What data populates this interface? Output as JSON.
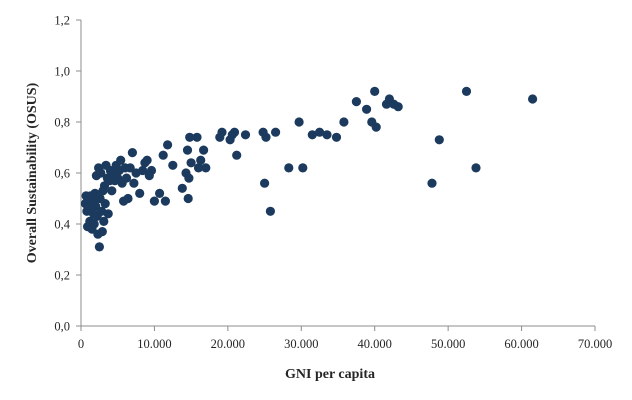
{
  "chart_data": {
    "type": "scatter",
    "title": "",
    "xlabel": "GNI per capita",
    "ylabel": "Overall Sustainability (OSUS)",
    "xlim": [
      0,
      70000
    ],
    "ylim": [
      0,
      1.2
    ],
    "x_ticks": [
      {
        "value": 0,
        "label": "0"
      },
      {
        "value": 10000,
        "label": "10.000"
      },
      {
        "value": 20000,
        "label": "20.000"
      },
      {
        "value": 30000,
        "label": "30.000"
      },
      {
        "value": 40000,
        "label": "40.000"
      },
      {
        "value": 50000,
        "label": "50.000"
      },
      {
        "value": 60000,
        "label": "60.000"
      },
      {
        "value": 70000,
        "label": "70.000"
      }
    ],
    "y_ticks": [
      {
        "value": 0,
        "label": "0,0"
      },
      {
        "value": 0.2,
        "label": "0,2"
      },
      {
        "value": 0.4,
        "label": "0,4"
      },
      {
        "value": 0.6,
        "label": "0,6"
      },
      {
        "value": 0.8,
        "label": "0,8"
      },
      {
        "value": 1.0,
        "label": "1,0"
      },
      {
        "value": 1.2,
        "label": "1,2"
      }
    ],
    "grid": false,
    "point_color": "#1b3a5e",
    "points": [
      [
        600,
        0.48
      ],
      [
        700,
        0.51
      ],
      [
        800,
        0.45
      ],
      [
        900,
        0.39
      ],
      [
        1000,
        0.5
      ],
      [
        1100,
        0.47
      ],
      [
        1200,
        0.41
      ],
      [
        1300,
        0.51
      ],
      [
        1400,
        0.46
      ],
      [
        1500,
        0.38
      ],
      [
        1600,
        0.49
      ],
      [
        1700,
        0.44
      ],
      [
        1800,
        0.4
      ],
      [
        1900,
        0.52
      ],
      [
        2000,
        0.47
      ],
      [
        2100,
        0.59
      ],
      [
        2200,
        0.43
      ],
      [
        2300,
        0.36
      ],
      [
        2400,
        0.62
      ],
      [
        2500,
        0.31
      ],
      [
        2600,
        0.5
      ],
      [
        2700,
        0.6
      ],
      [
        2800,
        0.45
      ],
      [
        2900,
        0.37
      ],
      [
        3000,
        0.53
      ],
      [
        3100,
        0.41
      ],
      [
        3200,
        0.55
      ],
      [
        3300,
        0.48
      ],
      [
        3400,
        0.63
      ],
      [
        3600,
        0.58
      ],
      [
        3700,
        0.44
      ],
      [
        3900,
        0.57
      ],
      [
        4000,
        0.61
      ],
      [
        4200,
        0.53
      ],
      [
        4400,
        0.6
      ],
      [
        4600,
        0.57
      ],
      [
        4800,
        0.63
      ],
      [
        5000,
        0.58
      ],
      [
        5200,
        0.61
      ],
      [
        5400,
        0.65
      ],
      [
        5600,
        0.56
      ],
      [
        5800,
        0.49
      ],
      [
        6000,
        0.62
      ],
      [
        6200,
        0.58
      ],
      [
        6400,
        0.5
      ],
      [
        6700,
        0.62
      ],
      [
        7000,
        0.68
      ],
      [
        7200,
        0.56
      ],
      [
        7500,
        0.6
      ],
      [
        8000,
        0.52
      ],
      [
        8400,
        0.61
      ],
      [
        8700,
        0.64
      ],
      [
        9000,
        0.65
      ],
      [
        9300,
        0.59
      ],
      [
        9600,
        0.61
      ],
      [
        10000,
        0.49
      ],
      [
        10700,
        0.52
      ],
      [
        11200,
        0.67
      ],
      [
        11500,
        0.49
      ],
      [
        11800,
        0.71
      ],
      [
        12500,
        0.63
      ],
      [
        13800,
        0.54
      ],
      [
        14300,
        0.6
      ],
      [
        14500,
        0.69
      ],
      [
        14600,
        0.5
      ],
      [
        14700,
        0.58
      ],
      [
        14800,
        0.74
      ],
      [
        15000,
        0.64
      ],
      [
        15800,
        0.74
      ],
      [
        16000,
        0.62
      ],
      [
        16300,
        0.65
      ],
      [
        16700,
        0.69
      ],
      [
        17000,
        0.62
      ],
      [
        18900,
        0.74
      ],
      [
        19200,
        0.76
      ],
      [
        20300,
        0.73
      ],
      [
        20600,
        0.75
      ],
      [
        20900,
        0.76
      ],
      [
        21200,
        0.67
      ],
      [
        22400,
        0.75
      ],
      [
        24800,
        0.76
      ],
      [
        25000,
        0.56
      ],
      [
        25200,
        0.74
      ],
      [
        25800,
        0.45
      ],
      [
        26500,
        0.76
      ],
      [
        28300,
        0.62
      ],
      [
        29700,
        0.8
      ],
      [
        30200,
        0.62
      ],
      [
        31500,
        0.75
      ],
      [
        32500,
        0.76
      ],
      [
        33500,
        0.75
      ],
      [
        34800,
        0.74
      ],
      [
        35800,
        0.8
      ],
      [
        37500,
        0.88
      ],
      [
        38900,
        0.85
      ],
      [
        39600,
        0.8
      ],
      [
        40000,
        0.92
      ],
      [
        40200,
        0.78
      ],
      [
        41600,
        0.87
      ],
      [
        42000,
        0.89
      ],
      [
        42600,
        0.87
      ],
      [
        43200,
        0.86
      ],
      [
        47800,
        0.56
      ],
      [
        48800,
        0.73
      ],
      [
        52500,
        0.92
      ],
      [
        53800,
        0.62
      ],
      [
        61500,
        0.89
      ]
    ]
  }
}
